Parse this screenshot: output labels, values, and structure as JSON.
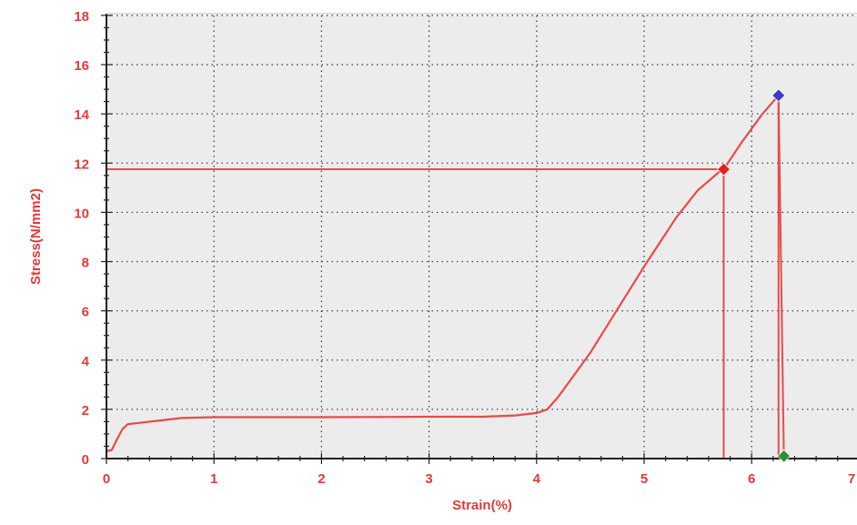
{
  "chart_data": {
    "type": "line",
    "title": "",
    "xlabel": "Strain(%)",
    "ylabel": "Stress(N/mm2)",
    "xlim": [
      0,
      7
    ],
    "ylim": [
      0,
      18
    ],
    "x_ticks": [
      0,
      1,
      2,
      3,
      4,
      5,
      6,
      7
    ],
    "x_tick_labels": [
      "0",
      "1",
      "2",
      "3",
      "4",
      "5",
      "6",
      "7"
    ],
    "y_ticks": [
      0,
      2,
      4,
      6,
      8,
      10,
      12,
      14,
      16,
      18
    ],
    "y_tick_labels": [
      "0",
      "2",
      "4",
      "6",
      "8",
      "10",
      "12",
      "14",
      "16",
      "18"
    ],
    "grid": true,
    "colors": {
      "curve": "#e84a4a",
      "axis_text": "#e23a3a",
      "grid": "#444444",
      "plot_background": "#ececec",
      "marker_red": "#e8201c",
      "marker_blue": "#3a3ad8",
      "marker_green": "#2f8f2f"
    },
    "series": [
      {
        "x": [
          0,
          0.05,
          0.1,
          0.15,
          0.2,
          0.3,
          0.5,
          0.7,
          1.0,
          1.5,
          2.0,
          2.5,
          3.0,
          3.5,
          3.8,
          4.0,
          4.1,
          4.2,
          4.3,
          4.5,
          4.7,
          5.0,
          5.3,
          5.5,
          5.7,
          5.74,
          5.9,
          6.1,
          6.25
        ],
        "y": [
          0.3,
          0.35,
          0.8,
          1.2,
          1.4,
          1.45,
          1.55,
          1.65,
          1.68,
          1.68,
          1.68,
          1.69,
          1.7,
          1.7,
          1.75,
          1.85,
          2.0,
          2.5,
          3.1,
          4.3,
          5.7,
          7.8,
          9.8,
          10.9,
          11.65,
          11.75,
          12.8,
          14.0,
          14.75
        ]
      }
    ],
    "guides": {
      "horizontal_y": 11.75,
      "vertical_x": [
        5.74,
        6.25,
        6.3
      ]
    },
    "markers": [
      {
        "x": 5.74,
        "y": 11.75,
        "shape": "diamond",
        "color": "#e8201c"
      },
      {
        "x": 6.25,
        "y": 14.75,
        "shape": "diamond",
        "color": "#3a3ad8"
      },
      {
        "x": 6.3,
        "y": 0.1,
        "shape": "diamond",
        "color": "#2f8f2f"
      }
    ]
  }
}
